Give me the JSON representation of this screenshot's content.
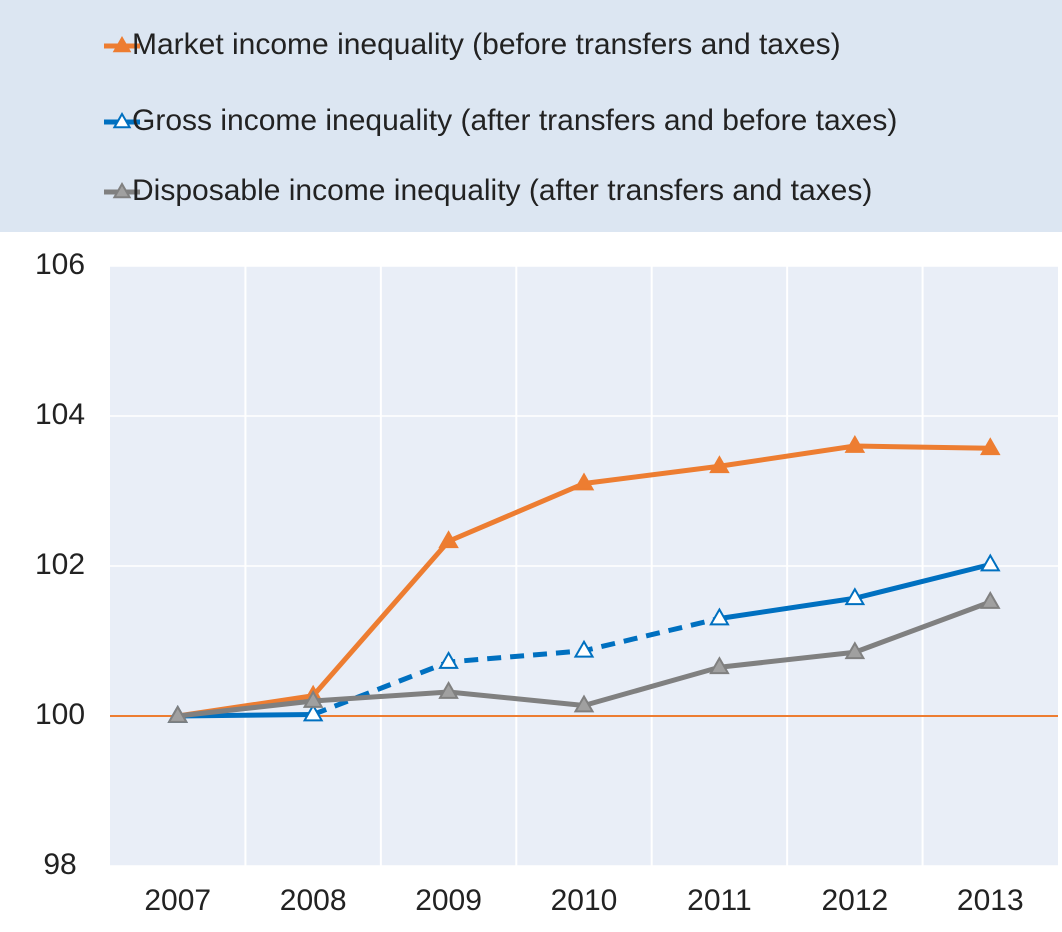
{
  "chart_data": {
    "type": "line",
    "categories": [
      "2007",
      "2008",
      "2009",
      "2010",
      "2011",
      "2012",
      "2013"
    ],
    "series": [
      {
        "name": "Market income inequality (before transfers and taxes)",
        "color": "#ED7D31",
        "marker_fill": "#ED7D31",
        "values": [
          100,
          100.27,
          102.33,
          103.1,
          103.33,
          103.6,
          103.57
        ]
      },
      {
        "name": "Gross income inequality (after transfers and before taxes)",
        "color": "#0070C0",
        "marker_fill": "#FFFFFF",
        "values": [
          100,
          100.02,
          100.72,
          100.87,
          101.3,
          101.57,
          102.02
        ],
        "dashed_range": [
          1,
          4
        ]
      },
      {
        "name": "Disposable income inequality (after transfers and taxes)",
        "color": "#808080",
        "marker_fill": "#A0A0A0",
        "values": [
          100,
          100.2,
          100.32,
          100.14,
          100.65,
          100.85,
          101.52
        ]
      }
    ],
    "ylim": [
      98,
      106
    ],
    "yticks": [
      98,
      100,
      102,
      104,
      106
    ],
    "reference_line": 100,
    "reference_color": "#ED7D31",
    "grid": true,
    "legend": "top"
  }
}
